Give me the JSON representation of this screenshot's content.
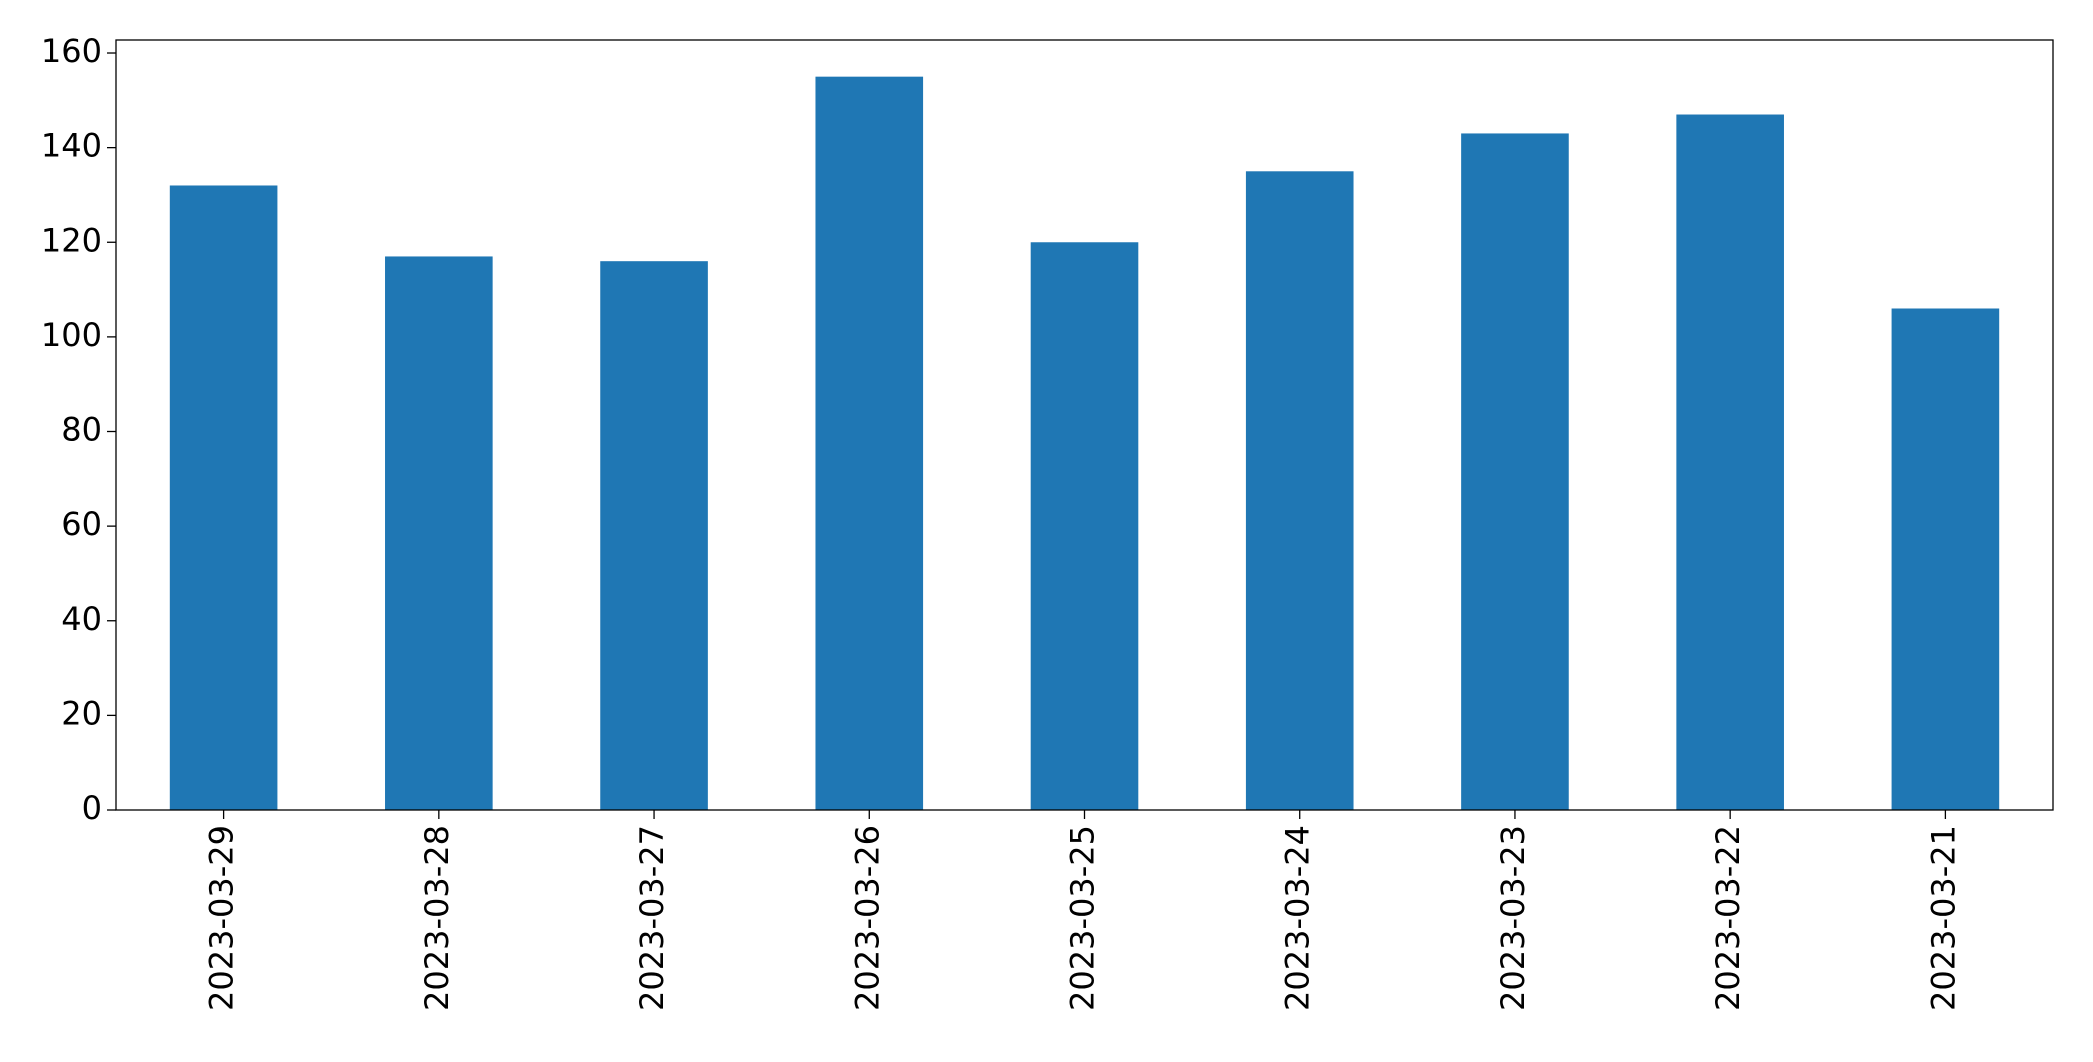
{
  "chart_data": {
    "type": "bar",
    "categories": [
      "2023-03-29",
      "2023-03-28",
      "2023-03-27",
      "2023-03-26",
      "2023-03-25",
      "2023-03-24",
      "2023-03-23",
      "2023-03-22",
      "2023-03-21"
    ],
    "values": [
      132,
      117,
      116,
      155,
      120,
      135,
      143,
      147,
      106
    ],
    "color": "#1f77b4",
    "ylim": [
      0,
      162.75
    ],
    "yticks": [
      0,
      20,
      40,
      60,
      80,
      100,
      120,
      140,
      160
    ],
    "grid": false
  }
}
